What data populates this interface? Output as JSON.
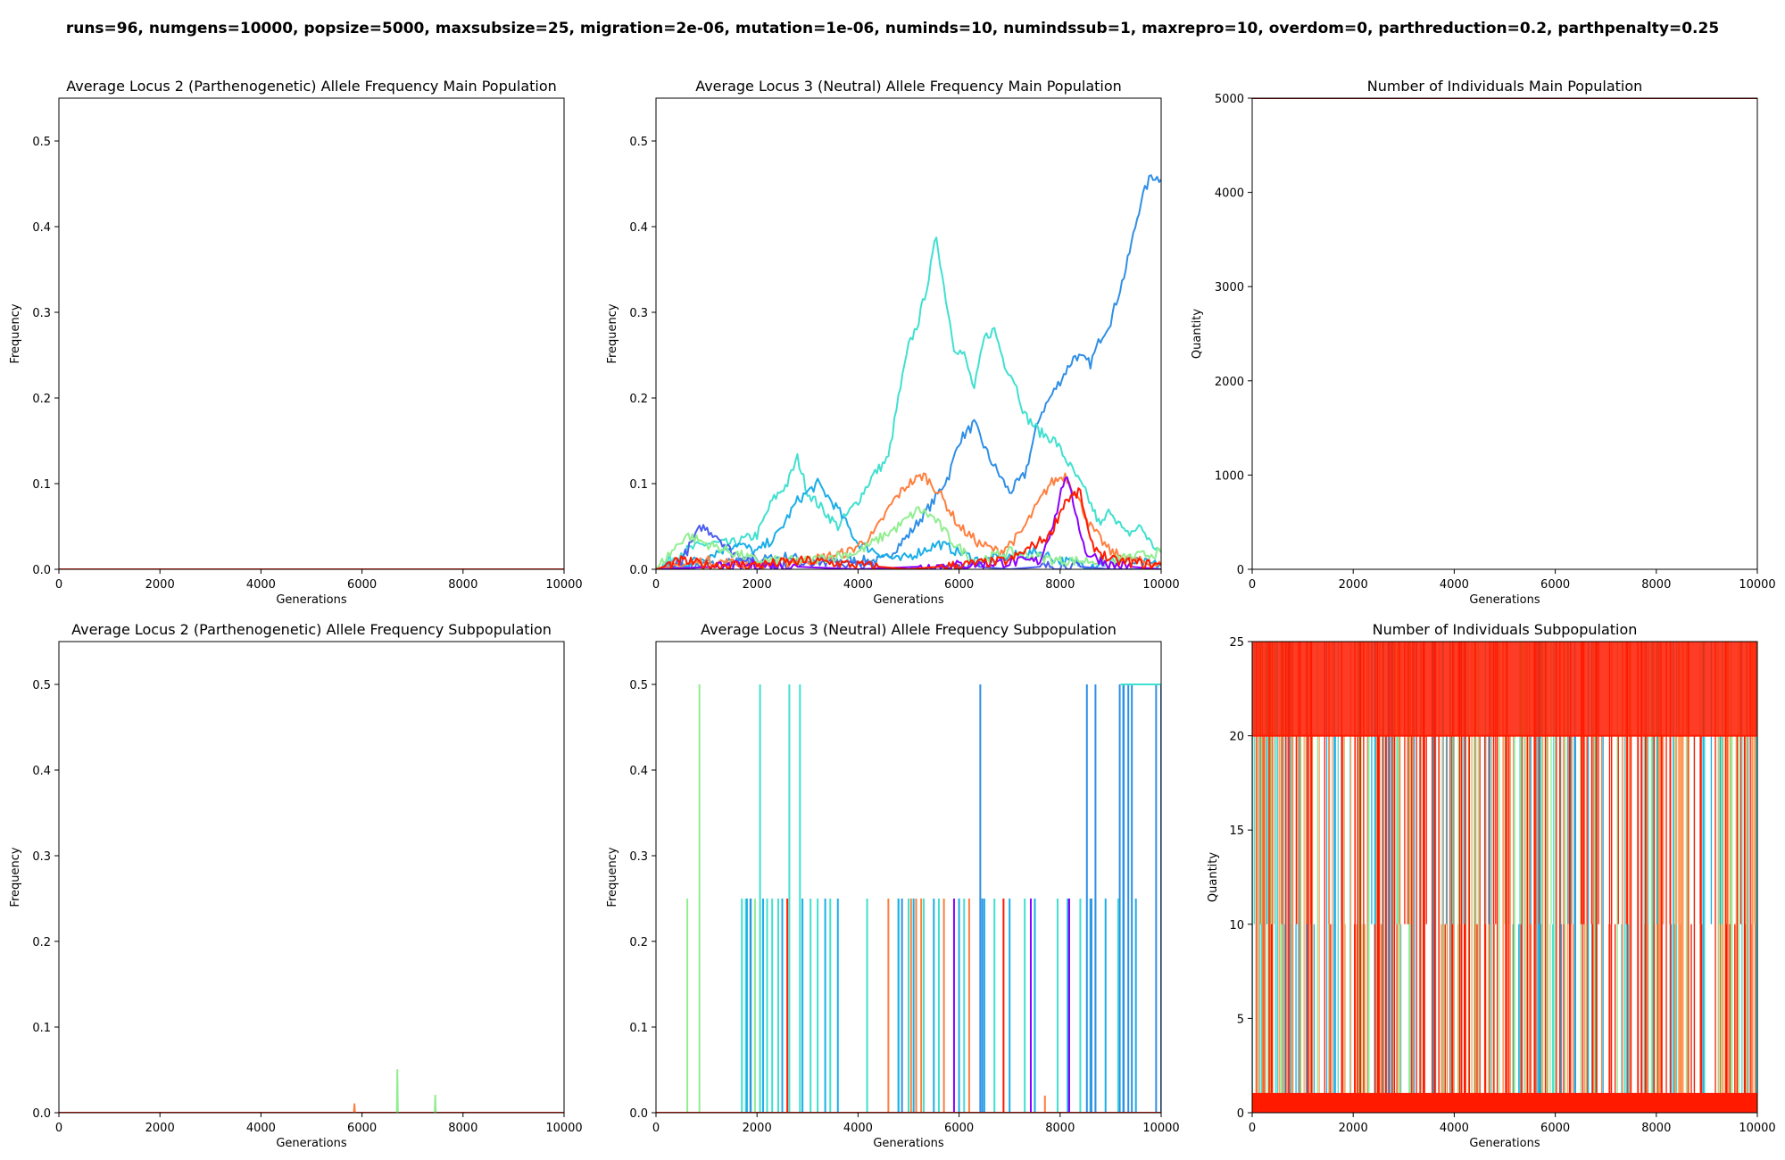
{
  "figure": {
    "suptitle": "runs=96, numgens=10000, popsize=5000, maxsubsize=25, migration=2e-06, mutation=1e-06, numinds=10, numindssub=1, maxrepro=10, overdom=0, parthreduction=0.2, parthpenalty=0.25"
  },
  "chart_data": [
    {
      "type": "line",
      "title": "Average Locus 2 (Parthenogenetic) Allele Frequency Main Population",
      "xlabel": "Generations",
      "ylabel": "Frequency",
      "xlim": [
        0,
        10000
      ],
      "ylim": [
        0,
        0.55
      ],
      "xticks": [
        0,
        2000,
        4000,
        6000,
        8000,
        10000
      ],
      "yticks": [
        0.0,
        0.1,
        0.2,
        0.3,
        0.4,
        0.5
      ],
      "ytick_labels": [
        "0.0",
        "0.1",
        "0.2",
        "0.3",
        "0.4",
        "0.5"
      ],
      "grid": false,
      "series": [
        {
          "color": "#ff1a00",
          "x": [
            0,
            10000
          ],
          "y": [
            0.0,
            0.0
          ]
        }
      ]
    },
    {
      "type": "line",
      "title": "Average Locus 3 (Neutral) Allele Frequency Main Population",
      "xlabel": "Generations",
      "ylabel": "Frequency",
      "xlim": [
        0,
        10000
      ],
      "ylim": [
        0,
        0.55
      ],
      "xticks": [
        0,
        2000,
        4000,
        6000,
        8000,
        10000
      ],
      "yticks": [
        0.0,
        0.1,
        0.2,
        0.3,
        0.4,
        0.5
      ],
      "ytick_labels": [
        "0.0",
        "0.1",
        "0.2",
        "0.3",
        "0.4",
        "0.5"
      ],
      "grid": false,
      "series": [
        {
          "color": "#2f8fe6",
          "x": [
            0,
            1000,
            2000,
            2600,
            3000,
            3500,
            4000,
            4500,
            5000,
            5500,
            5800,
            6000,
            6300,
            6600,
            7000,
            7300,
            7600,
            8000,
            8300,
            8600,
            8800,
            9000,
            9300,
            9600,
            9800,
            10000
          ],
          "y": [
            0.0,
            0.005,
            0.01,
            0.015,
            0.01,
            0.01,
            0.01,
            0.01,
            0.04,
            0.08,
            0.11,
            0.15,
            0.17,
            0.13,
            0.09,
            0.11,
            0.18,
            0.22,
            0.25,
            0.24,
            0.27,
            0.29,
            0.35,
            0.43,
            0.46,
            0.455
          ]
        },
        {
          "color": "#40e0d0",
          "x": [
            0,
            500,
            1000,
            1500,
            2000,
            2300,
            2600,
            2800,
            3000,
            3300,
            3600,
            4000,
            4300,
            4600,
            4800,
            5000,
            5200,
            5400,
            5550,
            5700,
            5900,
            6100,
            6300,
            6500,
            6700,
            6900,
            7100,
            7300,
            7600,
            7900,
            8200,
            8500,
            8800,
            9000,
            9300,
            9600,
            9800,
            10000
          ],
          "y": [
            0.0,
            0.02,
            0.03,
            0.03,
            0.04,
            0.08,
            0.1,
            0.13,
            0.09,
            0.07,
            0.05,
            0.08,
            0.11,
            0.13,
            0.2,
            0.26,
            0.29,
            0.34,
            0.39,
            0.33,
            0.26,
            0.25,
            0.21,
            0.27,
            0.28,
            0.24,
            0.22,
            0.18,
            0.16,
            0.15,
            0.12,
            0.09,
            0.05,
            0.07,
            0.04,
            0.05,
            0.03,
            0.02
          ]
        },
        {
          "color": "#1aaee8",
          "x": [
            0,
            800,
            1200,
            1600,
            2000,
            2400,
            2800,
            3200,
            3600,
            4000,
            4400,
            4800,
            5200,
            5600,
            6000,
            6400,
            7000,
            7600,
            8000,
            8600,
            9200,
            10000
          ],
          "y": [
            0.0,
            0.01,
            0.02,
            0.03,
            0.02,
            0.04,
            0.08,
            0.1,
            0.07,
            0.03,
            0.02,
            0.01,
            0.02,
            0.03,
            0.02,
            0.01,
            0.015,
            0.02,
            0.01,
            0.005,
            0.01,
            0.005
          ]
        },
        {
          "color": "#4b5cf0",
          "x": [
            0,
            500,
            900,
            1200,
            1500,
            2000,
            2500,
            3000,
            4000,
            5000,
            6000,
            7000,
            8000,
            9000,
            10000
          ],
          "y": [
            0.0,
            0.01,
            0.05,
            0.04,
            0.02,
            0.01,
            0.005,
            0.01,
            0.005,
            0.0,
            0.005,
            0.0,
            0.005,
            0.0,
            0.0
          ]
        },
        {
          "color": "#ff7f3f",
          "x": [
            0,
            1000,
            2000,
            3000,
            3800,
            4300,
            4700,
            5000,
            5300,
            5600,
            6000,
            6400,
            6800,
            7200,
            7500,
            7800,
            8100,
            8300,
            8600,
            9000,
            9500,
            10000
          ],
          "y": [
            0.0,
            0.01,
            0.005,
            0.01,
            0.02,
            0.04,
            0.08,
            0.1,
            0.11,
            0.09,
            0.05,
            0.03,
            0.02,
            0.04,
            0.07,
            0.1,
            0.11,
            0.09,
            0.05,
            0.02,
            0.01,
            0.005
          ]
        },
        {
          "color": "#90ee90",
          "x": [
            0,
            600,
            1000,
            1500,
            2000,
            3000,
            4000,
            4800,
            5200,
            5500,
            5900,
            6300,
            7000,
            8000,
            9000,
            9500,
            10000
          ],
          "y": [
            0.0,
            0.04,
            0.03,
            0.02,
            0.01,
            0.01,
            0.02,
            0.05,
            0.07,
            0.06,
            0.03,
            0.01,
            0.02,
            0.01,
            0.01,
            0.015,
            0.02
          ]
        },
        {
          "color": "#8b00ff",
          "x": [
            0,
            2000,
            4000,
            6000,
            7600,
            7900,
            8100,
            8300,
            8500,
            9000,
            10000
          ],
          "y": [
            0.0,
            0.005,
            0.0,
            0.005,
            0.01,
            0.06,
            0.11,
            0.07,
            0.02,
            0.005,
            0.0
          ]
        },
        {
          "color": "#ff1a00",
          "x": [
            0,
            500,
            1000,
            2000,
            3000,
            4000,
            5000,
            6000,
            7000,
            7800,
            8100,
            8400,
            8600,
            9000,
            10000
          ],
          "y": [
            0.0,
            0.01,
            0.005,
            0.005,
            0.01,
            0.005,
            0.0,
            0.005,
            0.01,
            0.04,
            0.08,
            0.09,
            0.03,
            0.01,
            0.005
          ]
        }
      ]
    },
    {
      "type": "line",
      "title": "Number of Individuals Main Population",
      "xlabel": "Generations",
      "ylabel": "Quantity",
      "xlim": [
        0,
        10000
      ],
      "ylim": [
        0,
        5000
      ],
      "xticks": [
        0,
        2000,
        4000,
        6000,
        8000,
        10000
      ],
      "yticks": [
        0,
        1000,
        2000,
        3000,
        4000,
        5000
      ],
      "ytick_labels": [
        "0",
        "1000",
        "2000",
        "3000",
        "4000",
        "5000"
      ],
      "grid": false,
      "series": [
        {
          "color": "#8b0000",
          "x": [
            0,
            10000
          ],
          "y": [
            5000,
            5000
          ]
        }
      ]
    },
    {
      "type": "line",
      "title": "Average Locus 2 (Parthenogenetic) Allele Frequency Subpopulation",
      "xlabel": "Generations",
      "ylabel": "Frequency",
      "xlim": [
        0,
        10000
      ],
      "ylim": [
        0,
        0.55
      ],
      "xticks": [
        0,
        2000,
        4000,
        6000,
        8000,
        10000
      ],
      "yticks": [
        0.0,
        0.1,
        0.2,
        0.3,
        0.4,
        0.5
      ],
      "ytick_labels": [
        "0.0",
        "0.1",
        "0.2",
        "0.3",
        "0.4",
        "0.5"
      ],
      "grid": false,
      "series": [
        {
          "color": "#ff1a00",
          "x": [
            0,
            10000
          ],
          "y": [
            0.0,
            0.0
          ]
        },
        {
          "color": "#ff7f3f",
          "x": [
            5840,
            5850,
            5860
          ],
          "y": [
            0.0,
            0.01,
            0.0
          ]
        },
        {
          "color": "#90ee90",
          "x": [
            6690,
            6700,
            6710
          ],
          "y": [
            0.0,
            0.05,
            0.0
          ]
        },
        {
          "color": "#90ee90",
          "x": [
            7440,
            7450,
            7460
          ],
          "y": [
            0.0,
            0.02,
            0.0
          ]
        }
      ]
    },
    {
      "type": "line",
      "title": "Average Locus 3 (Neutral) Allele Frequency Subpopulation",
      "xlabel": "Generations",
      "ylabel": "Frequency",
      "xlim": [
        0,
        10000
      ],
      "ylim": [
        0,
        0.55
      ],
      "xticks": [
        0,
        2000,
        4000,
        6000,
        8000,
        10000
      ],
      "yticks": [
        0.0,
        0.1,
        0.2,
        0.3,
        0.4,
        0.5
      ],
      "ytick_labels": [
        "0.0",
        "0.1",
        "0.2",
        "0.3",
        "0.4",
        "0.5"
      ],
      "grid": false,
      "spikes": [
        {
          "color": "#90ee90",
          "x": [
            620,
            860,
            1960
          ],
          "y": [
            0.25,
            0.5,
            0.25
          ]
        },
        {
          "color": "#40e0d0",
          "x": [
            1700,
            1780,
            1880,
            2060,
            2200,
            2300,
            2420,
            2640,
            2850,
            3060,
            3200,
            3450,
            4180,
            4800,
            5000,
            5300,
            5600,
            6100,
            6700,
            7300,
            7950,
            8400,
            8700,
            9150
          ],
          "y": [
            0.25,
            0.25,
            0.25,
            0.5,
            0.25,
            0.25,
            0.25,
            0.5,
            0.5,
            0.25,
            0.25,
            0.25,
            0.25,
            0.25,
            0.25,
            0.25,
            0.25,
            0.25,
            0.25,
            0.25,
            0.25,
            0.25,
            0.25,
            0.25
          ]
        },
        {
          "color": "#1aaee8",
          "x": [
            1800,
            2120,
            2500,
            2900,
            3350,
            3600,
            4800,
            5100,
            5500,
            6000,
            6500,
            7000,
            7500,
            8150,
            8600,
            8900,
            9250,
            9500
          ],
          "y": [
            0.25,
            0.25,
            0.25,
            0.25,
            0.25,
            0.25,
            0.25,
            0.25,
            0.25,
            0.25,
            0.25,
            0.25,
            0.25,
            0.25,
            0.25,
            0.25,
            0.5,
            0.25
          ]
        },
        {
          "color": "#2f8fe6",
          "x": [
            1870,
            6420,
            6460,
            8530,
            8620,
            8700,
            9180,
            9260,
            9350,
            9420,
            9900,
            10000
          ],
          "y": [
            0.25,
            0.5,
            0.25,
            0.5,
            0.25,
            0.5,
            0.5,
            0.5,
            0.5,
            0.5,
            0.5,
            0.5
          ]
        },
        {
          "color": "#ff7f3f",
          "x": [
            4600,
            5050,
            5150,
            5250,
            5700,
            6200,
            7700
          ],
          "y": [
            0.25,
            0.25,
            0.25,
            0.25,
            0.25,
            0.25,
            0.02
          ]
        },
        {
          "color": "#8b00ff",
          "x": [
            5900,
            7420,
            8180
          ],
          "y": [
            0.25,
            0.25,
            0.25
          ]
        },
        {
          "color": "#ff1a00",
          "x": [
            2600,
            6880
          ],
          "y": [
            0.25,
            0.25
          ]
        },
        {
          "color": "#2f8fe6",
          "x": [
            4870
          ],
          "y": [
            0.25
          ]
        }
      ],
      "segments": [
        {
          "color": "#40e0d0",
          "x": [
            9200,
            10000
          ],
          "y": [
            0.5,
            0.5
          ]
        },
        {
          "color": "#ff1a00",
          "x": [
            0,
            10000
          ],
          "y": [
            0.0,
            0.0
          ]
        }
      ]
    },
    {
      "type": "line",
      "title": "Number of Individuals Subpopulation",
      "xlabel": "Generations",
      "ylabel": "Quantity",
      "xlim": [
        0,
        10000
      ],
      "ylim": [
        0,
        25
      ],
      "xticks": [
        0,
        2000,
        4000,
        6000,
        8000,
        10000
      ],
      "yticks": [
        0,
        5,
        10,
        15,
        20,
        25
      ],
      "ytick_labels": [
        "0",
        "5",
        "10",
        "15",
        "20",
        "25"
      ],
      "grid": false,
      "description_levels": [
        1,
        10,
        20,
        25
      ],
      "series": [
        {
          "color": "#ff1a00",
          "x": [
            0,
            10000
          ],
          "y": [
            1,
            1
          ]
        },
        {
          "color": "#ff1a00",
          "x": [
            0,
            10000
          ],
          "y": [
            20,
            20
          ]
        }
      ]
    }
  ]
}
